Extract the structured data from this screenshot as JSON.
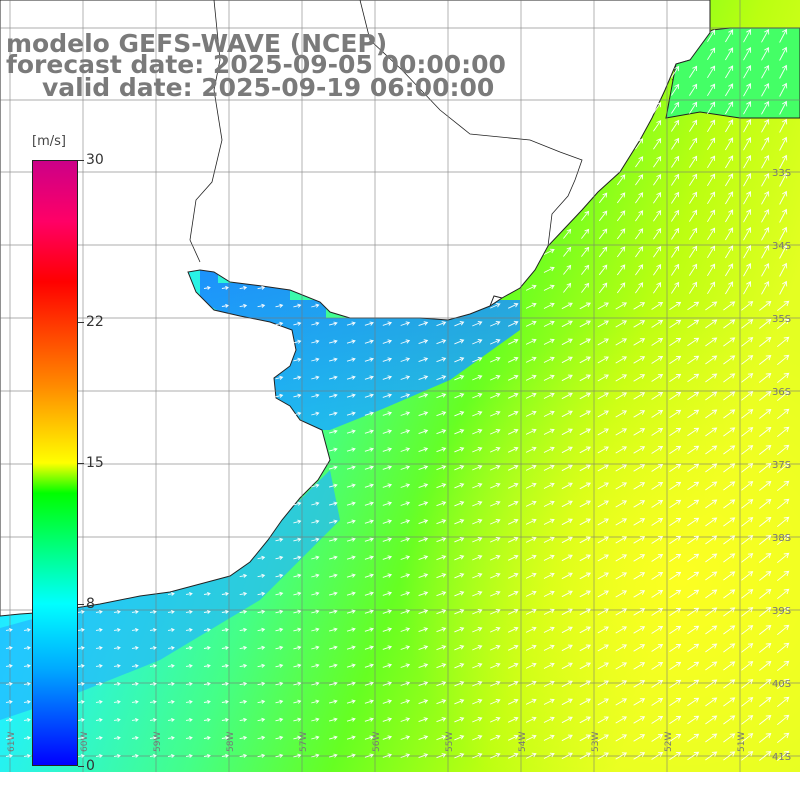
{
  "header": {
    "line1": "modelo GEFS-WAVE (NCEP)",
    "line2": "forecast date: 2025-09-05 00:00:00",
    "line3": "valid date: 2025-09-19 06:00:00"
  },
  "colorbar": {
    "unit": "[m/s]",
    "ticks": [
      {
        "label": "30",
        "value": 30
      },
      {
        "label": "22",
        "value": 22
      },
      {
        "label": "15",
        "value": 15
      },
      {
        "label": "8",
        "value": 8
      },
      {
        "label": "0",
        "value": 0
      }
    ],
    "colors": [
      "#0000ff",
      "#00aaff",
      "#00ffff",
      "#00ff00",
      "#ffff00",
      "#ff8800",
      "#ff0000",
      "#cc0088"
    ]
  },
  "map": {
    "lat_labels": [
      "33S",
      "34S",
      "35S",
      "36S",
      "37S",
      "38S",
      "39S",
      "40S",
      "41S"
    ],
    "lon_labels": [
      "61W",
      "60W",
      "59W",
      "58W",
      "57W",
      "56W",
      "55W",
      "54W",
      "53W",
      "52W",
      "51W"
    ],
    "land_color": "#ffffff",
    "arrow_color": "#ffffff",
    "grid_color": "#888888"
  }
}
